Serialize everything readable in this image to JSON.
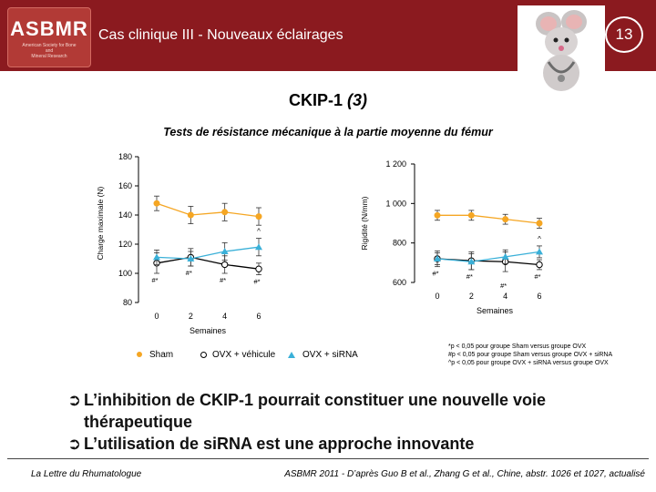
{
  "header": {
    "title": "Cas clinique III - Nouveaux éclairages",
    "slide_number": "13",
    "logo": {
      "text": "ASBMR",
      "sub_lines": [
        "American Society for Bone",
        "and",
        "Mineral Research"
      ]
    },
    "bar_color": "#8b1a1f"
  },
  "main_title": {
    "text": "CKIP-1 ",
    "italic": "(3)"
  },
  "subtitle": "Tests de résistance mécanique à la partie moyenne du fémur",
  "legend": {
    "sham": "Sham",
    "vehicle": "OVX + véhicule",
    "sirna": "OVX + siRNA"
  },
  "footnotes": [
    "*p < 0,05 pour groupe Sham versus groupe OVX",
    "#p < 0,05 pour groupe Sham versus groupe OVX + siRNA",
    "^p < 0,05 pour groupe OVX + siRNA versus groupe OVX"
  ],
  "bullets": [
    {
      "first": "L’inhibition de CKIP-1 pourrait constituer une nouvelle voie",
      "second": "thérapeutique"
    },
    {
      "first": "L’utilisation de siRNA est une approche innovante",
      "second": ""
    }
  ],
  "footer": {
    "left": "La Lettre du Rhumatologue",
    "right": "ASBMR 2011 - D’après Guo B et al., Zhang G et al., Chine, abstr. 1026 et 1027, actualisé"
  },
  "colors": {
    "sham": "#f5a623",
    "sirna": "#3ab0d8",
    "vehicle": "#000000"
  },
  "chart_data": [
    {
      "type": "line",
      "ylabel": "Charge maximale (N)",
      "xlabel": "Semaines",
      "x": [
        0,
        2,
        4,
        6
      ],
      "xticks": [
        "0",
        "2",
        "4",
        "6"
      ],
      "ylim": [
        80,
        180
      ],
      "yticks": [
        "80",
        "100",
        "120",
        "140",
        "160",
        "180"
      ],
      "series": [
        {
          "name": "Sham",
          "values": [
            148,
            140,
            142,
            139
          ],
          "err": [
            5,
            6,
            6,
            6
          ]
        },
        {
          "name": "OVX + véhicule",
          "values": [
            107,
            111,
            106,
            103
          ],
          "err": [
            7,
            6,
            6,
            4
          ]
        },
        {
          "name": "OVX + siRNA",
          "values": [
            111,
            110,
            115,
            118
          ],
          "err": [
            5,
            5,
            6,
            6
          ]
        }
      ],
      "annotations": [
        {
          "x": 0,
          "text": "#*"
        },
        {
          "x": 2,
          "text": "#*"
        },
        {
          "x": 4,
          "text": "#*"
        },
        {
          "x": 6,
          "text": "#*"
        },
        {
          "x": 6,
          "text": "^"
        }
      ]
    },
    {
      "type": "line",
      "ylabel": "Rigidité (N/mm)",
      "xlabel": "Semaines",
      "x": [
        0,
        2,
        4,
        6
      ],
      "xticks": [
        "0",
        "2",
        "4",
        "6"
      ],
      "ylim": [
        600,
        1200
      ],
      "yticks": [
        "600",
        "800",
        "1 000",
        "1 200"
      ],
      "series": [
        {
          "name": "Sham",
          "values": [
            940,
            940,
            920,
            900
          ],
          "err": [
            25,
            25,
            25,
            25
          ]
        },
        {
          "name": "OVX + véhicule",
          "values": [
            720,
            710,
            705,
            690
          ],
          "err": [
            40,
            45,
            50,
            25
          ]
        },
        {
          "name": "OVX + siRNA",
          "values": [
            720,
            705,
            730,
            755
          ],
          "err": [
            30,
            40,
            35,
            30
          ]
        }
      ],
      "annotations": [
        {
          "x": 0,
          "text": "#*"
        },
        {
          "x": 2,
          "text": "#*"
        },
        {
          "x": 4,
          "text": "#*"
        },
        {
          "x": 6,
          "text": "#*"
        },
        {
          "x": 6,
          "text": "^"
        }
      ]
    }
  ]
}
